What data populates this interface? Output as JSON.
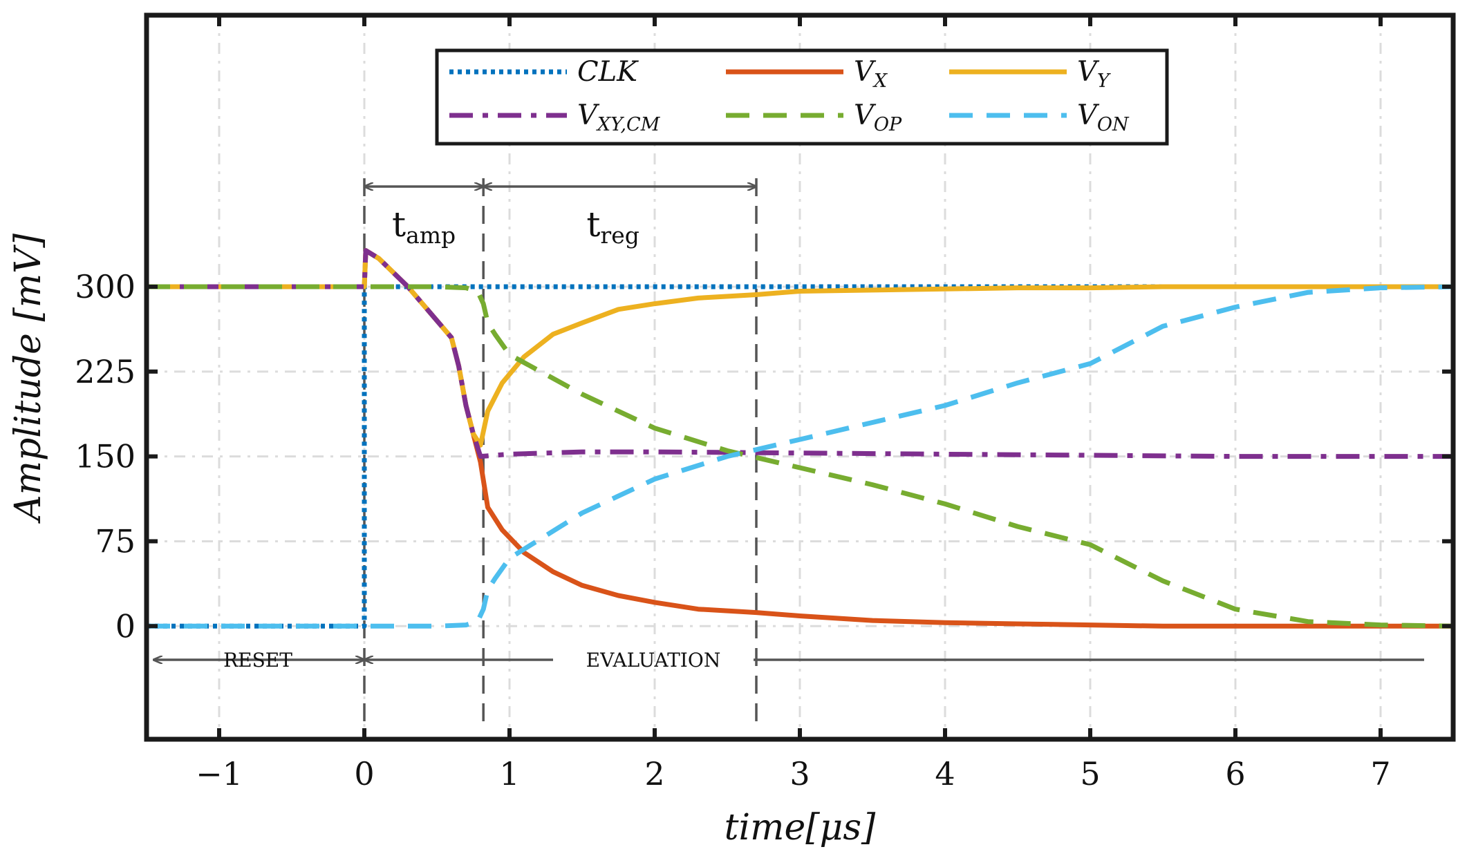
{
  "chart_data": {
    "type": "line",
    "title": "",
    "xlabel": "time[μs]",
    "ylabel": "Amplitude [mV]",
    "xlim": [
      -1.5,
      7.5
    ],
    "ylim": [
      -100,
      540
    ],
    "xticks": [
      -1,
      0,
      1,
      2,
      3,
      4,
      5,
      6,
      7
    ],
    "xtick_labels": [
      "−1",
      "0",
      "1",
      "2",
      "3",
      "4",
      "5",
      "6",
      "7"
    ],
    "yticks": [
      0,
      75,
      150,
      225,
      300
    ],
    "ytick_labels": [
      "0",
      "75",
      "150",
      "225",
      "300"
    ],
    "grid": true,
    "legend_position": "top-center",
    "series": [
      {
        "name": "CLK",
        "label_main": "CLK",
        "label_sub": "",
        "color": "#0072BD",
        "style": "dotted",
        "x": [
          -1.5,
          0,
          0,
          7.5
        ],
        "y": [
          0,
          0,
          300,
          300
        ]
      },
      {
        "name": "V_X",
        "label_main": "V",
        "label_sub": "X",
        "color": "#D95319",
        "style": "solid",
        "x": [
          -1.5,
          0,
          0.01,
          0.1,
          0.3,
          0.5,
          0.6,
          0.65,
          0.7,
          0.75,
          0.8,
          0.85,
          0.95,
          1.1,
          1.3,
          1.5,
          1.75,
          2.0,
          2.3,
          2.7,
          3.0,
          3.5,
          4.0,
          4.5,
          5.0,
          5.5,
          6.0,
          6.5,
          7.0,
          7.5
        ],
        "y": [
          300,
          300,
          332,
          325,
          300,
          270,
          255,
          230,
          195,
          170,
          145,
          105,
          85,
          65,
          48,
          36,
          27,
          21,
          15,
          12,
          9,
          5,
          3,
          2,
          1,
          0,
          0,
          0,
          0,
          0
        ]
      },
      {
        "name": "V_Y",
        "label_main": "V",
        "label_sub": "Y",
        "color": "#EDB120",
        "style": "solid",
        "x": [
          -1.5,
          0,
          0.01,
          0.1,
          0.3,
          0.5,
          0.6,
          0.65,
          0.7,
          0.75,
          0.8,
          0.85,
          0.95,
          1.1,
          1.3,
          1.5,
          1.75,
          2.0,
          2.3,
          2.7,
          3.0,
          3.5,
          4.0,
          4.5,
          5.0,
          5.5,
          6.0,
          6.5,
          7.0,
          7.5
        ],
        "y": [
          300,
          300,
          332,
          325,
          300,
          270,
          255,
          230,
          195,
          170,
          160,
          190,
          215,
          238,
          258,
          268,
          280,
          285,
          290,
          293,
          296,
          297,
          298,
          299,
          299,
          300,
          300,
          300,
          300,
          300
        ]
      },
      {
        "name": "V_XY,CM",
        "label_main": "V",
        "label_sub": "XY,CM",
        "color": "#7E2F8E",
        "style": "dashdot",
        "x": [
          -1.5,
          0,
          0.01,
          0.1,
          0.3,
          0.5,
          0.6,
          0.65,
          0.7,
          0.75,
          0.8,
          1.0,
          1.5,
          2.0,
          3.0,
          4.0,
          5.0,
          6.0,
          7.0,
          7.5
        ],
        "y": [
          300,
          300,
          332,
          325,
          300,
          270,
          255,
          230,
          195,
          170,
          150,
          152,
          154,
          154,
          153,
          152,
          151,
          150,
          150,
          150
        ]
      },
      {
        "name": "V_OP",
        "label_main": "V",
        "label_sub": "OP",
        "color": "#77AC30",
        "style": "dashed",
        "x": [
          -1.5,
          0,
          0.5,
          0.7,
          0.78,
          0.82,
          0.85,
          0.9,
          1.0,
          1.5,
          2.0,
          2.5,
          3.0,
          3.5,
          4.0,
          4.5,
          5.0,
          5.5,
          6.0,
          6.5,
          7.0,
          7.5
        ],
        "y": [
          300,
          300,
          300,
          299,
          296,
          285,
          268,
          258,
          240,
          205,
          175,
          155,
          140,
          125,
          108,
          88,
          72,
          40,
          15,
          4,
          1,
          0
        ]
      },
      {
        "name": "V_ON",
        "label_main": "V",
        "label_sub": "ON",
        "color": "#4DBEEE",
        "style": "dashed",
        "x": [
          -1.5,
          0,
          0.5,
          0.7,
          0.78,
          0.82,
          0.85,
          0.9,
          1.0,
          1.5,
          2.0,
          2.5,
          3.0,
          3.5,
          4.0,
          4.5,
          5.0,
          5.5,
          6.0,
          6.5,
          7.0,
          7.5
        ],
        "y": [
          0,
          0,
          0,
          1,
          4,
          15,
          32,
          42,
          60,
          100,
          130,
          150,
          165,
          180,
          195,
          215,
          232,
          265,
          282,
          295,
          299,
          300
        ]
      }
    ],
    "annotations": {
      "t_amp": {
        "main": "t",
        "sub": "amp",
        "from": 0,
        "to": 0.82
      },
      "t_reg": {
        "main": "t",
        "sub": "reg",
        "from": 0.82,
        "to": 2.7
      },
      "reset": {
        "label": "RESET",
        "from": -1.5,
        "to": 0
      },
      "evaluation": {
        "label": "EVALUATION",
        "from": 0,
        "to": 7.3
      }
    }
  }
}
